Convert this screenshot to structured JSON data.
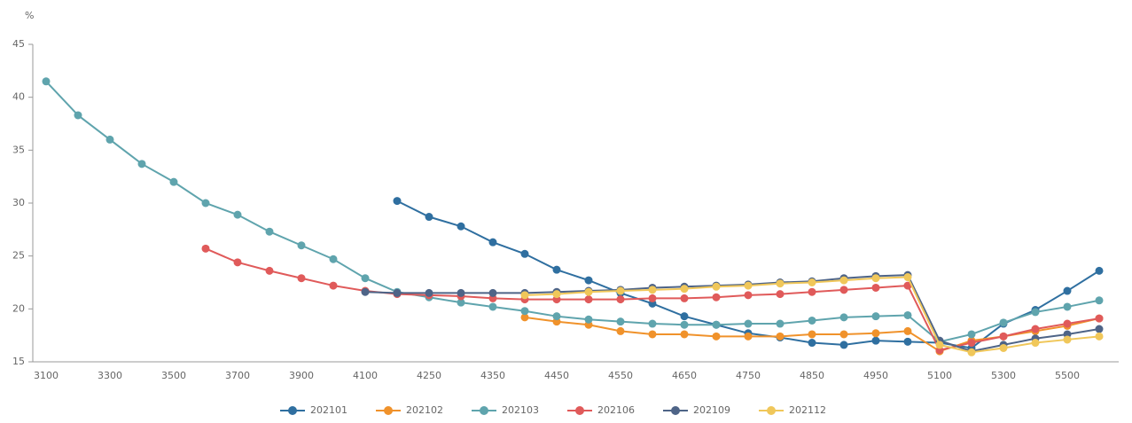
{
  "chart_data": {
    "type": "line",
    "y_label": "%",
    "categories": [
      "3100",
      null,
      "3300",
      null,
      "3500",
      null,
      "3700",
      null,
      "3900",
      null,
      "4100",
      null,
      "4250",
      null,
      "4350",
      null,
      "4450",
      null,
      "4550",
      null,
      "4650",
      null,
      "4750",
      null,
      "4850",
      null,
      "4950",
      null,
      "5100",
      null,
      "5300",
      null,
      "5500",
      null
    ],
    "ylim": [
      15,
      45
    ],
    "yticks": [
      15,
      20,
      25,
      30,
      35,
      40,
      45
    ],
    "grid": false,
    "legend": "bottom",
    "series": [
      {
        "name": "202101",
        "color": "#2f6fa0",
        "values": [
          null,
          null,
          null,
          null,
          null,
          null,
          null,
          null,
          null,
          null,
          null,
          30.2,
          28.7,
          27.8,
          26.3,
          25.2,
          23.7,
          22.7,
          21.5,
          20.5,
          19.3,
          18.5,
          17.7,
          17.3,
          16.8,
          16.6,
          17.0,
          16.9,
          16.8,
          16.3,
          18.6,
          19.9,
          21.7,
          23.6
        ]
      },
      {
        "name": "202102",
        "color": "#f0922b",
        "values": [
          null,
          null,
          null,
          null,
          null,
          null,
          null,
          null,
          null,
          null,
          null,
          null,
          null,
          null,
          null,
          19.2,
          18.8,
          18.5,
          17.9,
          17.6,
          17.6,
          17.4,
          17.4,
          17.4,
          17.6,
          17.6,
          17.7,
          17.9,
          16.0,
          17.0,
          17.4,
          17.9,
          18.4,
          19.1
        ]
      },
      {
        "name": "202103",
        "color": "#5fa4ad",
        "values": [
          41.5,
          38.3,
          36.0,
          33.7,
          32.0,
          30.0,
          28.9,
          27.3,
          26.0,
          24.7,
          22.9,
          21.6,
          21.1,
          20.6,
          20.2,
          19.8,
          19.3,
          19.0,
          18.8,
          18.6,
          18.5,
          18.5,
          18.6,
          18.6,
          18.9,
          19.2,
          19.3,
          19.4,
          16.9,
          17.6,
          18.7,
          19.7,
          20.2,
          20.8
        ]
      },
      {
        "name": "202106",
        "color": "#e05a5a",
        "values": [
          null,
          null,
          null,
          null,
          null,
          25.7,
          24.4,
          23.6,
          22.9,
          22.2,
          21.7,
          21.4,
          21.3,
          21.2,
          21.0,
          20.9,
          20.9,
          20.9,
          20.9,
          21.0,
          21.0,
          21.1,
          21.3,
          21.4,
          21.6,
          21.8,
          22.0,
          22.2,
          16.1,
          16.8,
          17.4,
          18.1,
          18.6,
          19.1
        ]
      },
      {
        "name": "202109",
        "color": "#4e6487",
        "values": [
          null,
          null,
          null,
          null,
          null,
          null,
          null,
          null,
          null,
          null,
          21.6,
          21.5,
          21.5,
          21.5,
          21.5,
          21.5,
          21.6,
          21.7,
          21.8,
          22.0,
          22.1,
          22.2,
          22.3,
          22.5,
          22.6,
          22.9,
          23.1,
          23.2,
          17.0,
          16.0,
          16.6,
          17.2,
          17.6,
          18.1
        ]
      },
      {
        "name": "202112",
        "color": "#f0c75a",
        "values": [
          null,
          null,
          null,
          null,
          null,
          null,
          null,
          null,
          null,
          null,
          null,
          null,
          null,
          null,
          null,
          21.3,
          21.4,
          21.6,
          21.7,
          21.8,
          21.9,
          22.1,
          22.2,
          22.4,
          22.5,
          22.7,
          22.9,
          23.0,
          16.6,
          15.9,
          16.3,
          16.8,
          17.1,
          17.4
        ]
      }
    ]
  }
}
